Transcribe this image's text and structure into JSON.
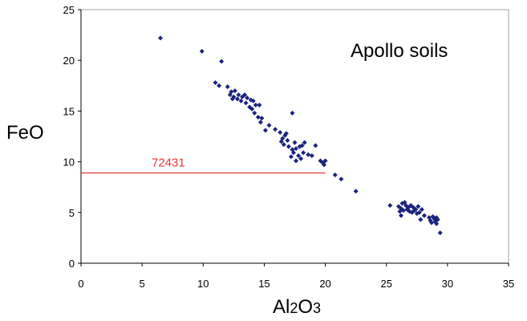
{
  "chart_data": {
    "type": "scatter",
    "title": "Apollo soils",
    "ylabel": "FeO",
    "xlabel": {
      "parts": [
        "Al",
        "2",
        "O",
        "3"
      ]
    },
    "xlim": [
      0,
      35
    ],
    "ylim": [
      0,
      25
    ],
    "xticks": [
      "0",
      "5",
      "10",
      "15",
      "20",
      "25",
      "30",
      "35"
    ],
    "yticks": [
      "0",
      "5",
      "10",
      "15",
      "20",
      "25"
    ],
    "grid": false,
    "marker_color": "#1a237e",
    "reference_line": {
      "label": "72431",
      "y": 8.9,
      "x_start": 0,
      "x_end": 20,
      "color": "#e53935"
    },
    "series": [
      {
        "points": [
          [
            6.5,
            22.2
          ],
          [
            9.9,
            20.9
          ],
          [
            11.5,
            19.9
          ],
          [
            11.0,
            17.8
          ],
          [
            11.3,
            17.5
          ],
          [
            12.0,
            17.4
          ],
          [
            12.3,
            16.9
          ],
          [
            12.6,
            17.0
          ],
          [
            12.2,
            16.6
          ],
          [
            12.5,
            16.4
          ],
          [
            12.9,
            16.6
          ],
          [
            13.2,
            16.4
          ],
          [
            12.4,
            16.2
          ],
          [
            12.8,
            16.2
          ],
          [
            13.4,
            16.6
          ],
          [
            13.6,
            16.3
          ],
          [
            13.1,
            16.0
          ],
          [
            13.9,
            16.1
          ],
          [
            14.1,
            16.0
          ],
          [
            13.5,
            15.8
          ],
          [
            13.8,
            15.4
          ],
          [
            14.3,
            15.6
          ],
          [
            14.0,
            15.2
          ],
          [
            14.6,
            15.6
          ],
          [
            14.2,
            14.8
          ],
          [
            14.5,
            14.4
          ],
          [
            14.8,
            14.3
          ],
          [
            14.7,
            13.9
          ],
          [
            15.4,
            13.6
          ],
          [
            15.1,
            13.1
          ],
          [
            15.9,
            13.2
          ],
          [
            16.3,
            12.9
          ],
          [
            16.5,
            12.3
          ],
          [
            16.7,
            12.6
          ],
          [
            16.4,
            12.0
          ],
          [
            16.9,
            12.1
          ],
          [
            16.6,
            11.7
          ],
          [
            17.0,
            11.5
          ],
          [
            17.3,
            11.2
          ],
          [
            17.6,
            11.3
          ],
          [
            17.5,
            11.9
          ],
          [
            17.9,
            11.5
          ],
          [
            18.1,
            11.6
          ],
          [
            18.3,
            11.9
          ],
          [
            17.4,
            10.9
          ],
          [
            17.2,
            10.5
          ],
          [
            17.8,
            10.6
          ],
          [
            18.0,
            10.3
          ],
          [
            17.6,
            10.1
          ],
          [
            18.2,
            10.9
          ],
          [
            18.6,
            10.7
          ],
          [
            17.3,
            14.8
          ],
          [
            16.8,
            12.8
          ],
          [
            19.2,
            11.6
          ],
          [
            18.9,
            10.6
          ],
          [
            19.6,
            10.1
          ],
          [
            19.8,
            9.9
          ],
          [
            20.0,
            10.1
          ],
          [
            19.9,
            9.7
          ],
          [
            20.8,
            8.7
          ],
          [
            21.3,
            8.3
          ],
          [
            22.5,
            7.1
          ],
          [
            25.3,
            5.7
          ],
          [
            26.0,
            5.6
          ],
          [
            26.1,
            5.1
          ],
          [
            26.3,
            5.9
          ],
          [
            26.5,
            6.0
          ],
          [
            26.2,
            5.4
          ],
          [
            26.6,
            5.7
          ],
          [
            26.8,
            5.5
          ],
          [
            26.4,
            5.2
          ],
          [
            27.0,
            5.7
          ],
          [
            27.2,
            5.5
          ],
          [
            26.9,
            5.1
          ],
          [
            27.4,
            5.3
          ],
          [
            27.6,
            5.6
          ],
          [
            27.3,
            5.2
          ],
          [
            27.7,
            5.0
          ],
          [
            27.9,
            5.3
          ],
          [
            27.5,
            4.9
          ],
          [
            26.7,
            5.3
          ],
          [
            27.1,
            5.0
          ],
          [
            26.2,
            4.7
          ],
          [
            27.8,
            4.3
          ],
          [
            28.1,
            4.7
          ],
          [
            28.5,
            4.5
          ],
          [
            28.6,
            4.2
          ],
          [
            28.8,
            4.6
          ],
          [
            28.9,
            4.4
          ],
          [
            29.0,
            4.1
          ],
          [
            29.1,
            4.5
          ],
          [
            29.2,
            4.3
          ],
          [
            28.7,
            4.0
          ],
          [
            29.1,
            3.9
          ],
          [
            29.4,
            3.0
          ]
        ]
      }
    ]
  }
}
